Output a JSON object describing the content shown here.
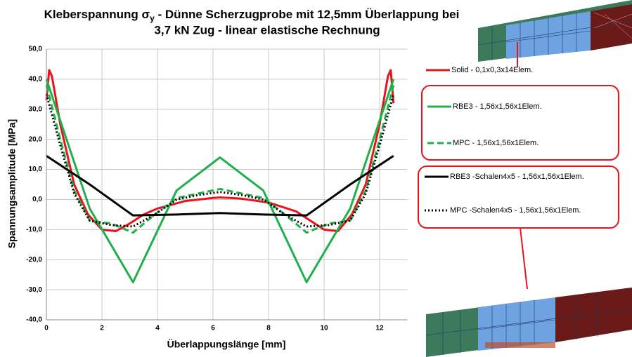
{
  "chart_data": {
    "type": "line",
    "title": {
      "line1_a": "Kleberspannung σ",
      "line1_sub": "y",
      "line1_b": " - Dünne Scherzugprobe mit 12,5mm Überlappung bei",
      "line2": "3,7 kN Zug - linear elastische Rechnung"
    },
    "x_label": "Überlappungslänge  [mm]",
    "y_label": "Spannungsamplitude  [MPa]",
    "xlim": [
      0,
      13
    ],
    "xticks": [
      0,
      2,
      4,
      6,
      8,
      10,
      12
    ],
    "ylim": [
      -40,
      50
    ],
    "yticks": [
      {
        "value": -40,
        "label": "-40,0"
      },
      {
        "value": -30,
        "label": "-30,0"
      },
      {
        "value": -20,
        "label": "-20,0"
      },
      {
        "value": -10,
        "label": "-10,0"
      },
      {
        "value": 0,
        "label": "0,0"
      },
      {
        "value": 10,
        "label": "10,0"
      },
      {
        "value": 20,
        "label": "20,0"
      },
      {
        "value": 30,
        "label": "30,0"
      },
      {
        "value": 40,
        "label": "40,0"
      },
      {
        "value": 50,
        "label": "50,0"
      }
    ],
    "grid": true,
    "series": [
      {
        "name": "Solid - 0,1x0,3x14Elem.",
        "color": "#e8141b",
        "linestyle": "solid",
        "x": [
          0,
          0.1,
          0.2,
          0.5,
          1,
          1.5,
          2,
          2.5,
          3,
          3.5,
          4,
          5,
          6,
          6.25,
          7,
          8,
          9,
          9.5,
          10,
          10.5,
          11,
          11.5,
          12,
          12.3,
          12.4,
          12.5
        ],
        "values": [
          33,
          43,
          41,
          25,
          5,
          -5,
          -10,
          -10.5,
          -8,
          -5,
          -3,
          -0.5,
          0.5,
          0.7,
          0.3,
          -1,
          -4,
          -7,
          -10,
          -10.5,
          -5,
          5,
          25,
          41,
          43,
          32
        ]
      },
      {
        "name": "RBE3 - 1,56x1,56x1Elem.",
        "color": "#1fb04b",
        "linestyle": "solid",
        "x": [
          0,
          1.56,
          3.12,
          4.69,
          6.25,
          7.81,
          9.37,
          10.94,
          12.5
        ],
        "values": [
          40,
          -3,
          -27.5,
          3,
          14,
          3,
          -27.5,
          -3,
          40
        ]
      },
      {
        "name": "MPC - 1,56x1,56x1Elem.",
        "color": "#1fb04b",
        "linestyle": "dashed",
        "x": [
          0,
          0.5,
          1,
          1.56,
          2.34,
          3.12,
          3.9,
          4.69,
          5.47,
          6.25,
          7.03,
          7.81,
          8.59,
          9.37,
          10.16,
          10.94,
          11.5,
          12,
          12.5
        ],
        "values": [
          38,
          20,
          3,
          -7,
          -8,
          -11,
          -5,
          0.5,
          2,
          3.5,
          2,
          0.5,
          -5,
          -11,
          -8,
          -7,
          3,
          20,
          38
        ]
      },
      {
        "name": "RBE3 -Schalen4x5 - 1,56x1,56x1Elem.",
        "color": "#000000",
        "linestyle": "solid",
        "x": [
          0,
          1.56,
          3.12,
          4.69,
          6.25,
          7.81,
          9.37,
          10.94,
          12.5
        ],
        "values": [
          14.5,
          5,
          -5.3,
          -5,
          -4.5,
          -5,
          -5.3,
          5,
          14.5
        ]
      },
      {
        "name": "MPC -Schalen4x5 - 1,56x1,56x1Elem.",
        "color": "#000000",
        "linestyle": "dotted",
        "x": [
          0,
          0.5,
          1,
          1.56,
          2.34,
          3.12,
          3.9,
          4.69,
          5.47,
          6.25,
          7.03,
          7.81,
          8.59,
          9.37,
          10.16,
          10.94,
          11.5,
          12,
          12.5
        ],
        "values": [
          35,
          18,
          2,
          -7,
          -8.5,
          -9,
          -5,
          0,
          1.5,
          2.5,
          1.5,
          0,
          -5,
          -9,
          -8.5,
          -7,
          2,
          18,
          35
        ]
      }
    ]
  }
}
